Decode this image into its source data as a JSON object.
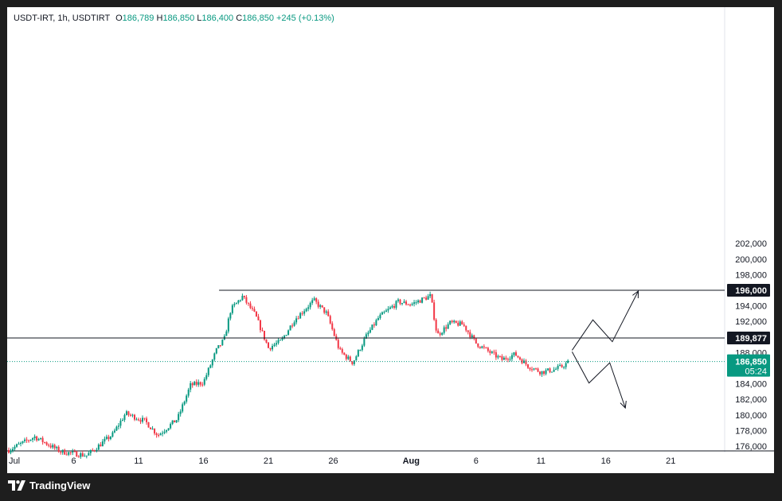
{
  "legend": {
    "symbol": "USDT-IRT, 1h, USDTIRT",
    "open_label": "O",
    "open": "186,789",
    "high_label": "H",
    "high": "186,850",
    "low_label": "L",
    "low": "186,400",
    "close_label": "C",
    "close": "186,850",
    "change": "+245 (+0.13%)"
  },
  "footer": {
    "brand": "TradingView"
  },
  "colors": {
    "up": "#089981",
    "down": "#f23645",
    "price_line": "#089981",
    "badge_dark": "#131722"
  },
  "chart_data": {
    "type": "candlestick",
    "y_ticks": [
      176000,
      178000,
      180000,
      182000,
      184000,
      186000,
      188000,
      190000,
      192000,
      194000,
      196000,
      198000,
      200000,
      202000
    ],
    "y_tick_labels": [
      "176,000",
      "178,000",
      "180,000",
      "182,000",
      "184,000",
      "",
      "188,000",
      "",
      "192,000",
      "194,000",
      "",
      "198,000",
      "200,000",
      "202,000"
    ],
    "x_ticks": [
      "Jul",
      "6",
      "11",
      "16",
      "21",
      "26",
      "Aug",
      "6",
      "11",
      "16",
      "21"
    ],
    "y_range": [
      175200,
      204300
    ],
    "levels": [
      {
        "price": 196000,
        "label": "196,000"
      },
      {
        "price": 189877,
        "label": "189,877"
      }
    ],
    "current": {
      "price": 186850,
      "label": "186,850",
      "countdown": "05:24"
    },
    "path_anchors": [
      {
        "day": 0,
        "price": 175500
      },
      {
        "day": 2,
        "price": 177200
      },
      {
        "day": 4,
        "price": 175300
      },
      {
        "day": 6,
        "price": 174800
      },
      {
        "day": 8,
        "price": 177500
      },
      {
        "day": 9,
        "price": 180200
      },
      {
        "day": 10.5,
        "price": 179200
      },
      {
        "day": 11.5,
        "price": 177400
      },
      {
        "day": 13,
        "price": 179500
      },
      {
        "day": 14,
        "price": 183800
      },
      {
        "day": 15,
        "price": 184200
      },
      {
        "day": 16,
        "price": 188300
      },
      {
        "day": 16.6,
        "price": 189700
      },
      {
        "day": 17.1,
        "price": 193500
      },
      {
        "day": 18,
        "price": 195200
      },
      {
        "day": 19,
        "price": 192800
      },
      {
        "day": 20,
        "price": 188600
      },
      {
        "day": 21,
        "price": 189500
      },
      {
        "day": 22,
        "price": 192200
      },
      {
        "day": 23.5,
        "price": 194700
      },
      {
        "day": 24.5,
        "price": 193000
      },
      {
        "day": 25.5,
        "price": 188200
      },
      {
        "day": 26.5,
        "price": 186700
      },
      {
        "day": 27.5,
        "price": 190000
      },
      {
        "day": 28.5,
        "price": 192500
      },
      {
        "day": 30,
        "price": 194500
      },
      {
        "day": 31,
        "price": 194200
      },
      {
        "day": 32.5,
        "price": 195300
      },
      {
        "day": 33,
        "price": 190200
      },
      {
        "day": 34,
        "price": 191800
      },
      {
        "day": 35,
        "price": 191600
      },
      {
        "day": 36,
        "price": 189200
      },
      {
        "day": 37,
        "price": 188100
      },
      {
        "day": 38,
        "price": 187100
      },
      {
        "day": 39,
        "price": 187800
      },
      {
        "day": 40,
        "price": 186300
      },
      {
        "day": 41,
        "price": 185500
      },
      {
        "day": 42,
        "price": 185800
      },
      {
        "day": 42.6,
        "price": 186200
      },
      {
        "day": 43.2,
        "price": 186850
      }
    ],
    "projection_up": [
      {
        "day": 43.4,
        "price": 188300
      },
      {
        "day": 45,
        "price": 192200
      },
      {
        "day": 46.5,
        "price": 189400
      },
      {
        "day": 48.5,
        "price": 195900
      }
    ],
    "projection_down": [
      {
        "day": 43.4,
        "price": 188100
      },
      {
        "day": 44.7,
        "price": 184100
      },
      {
        "day": 46.3,
        "price": 186700
      },
      {
        "day": 47.5,
        "price": 180900
      }
    ]
  }
}
